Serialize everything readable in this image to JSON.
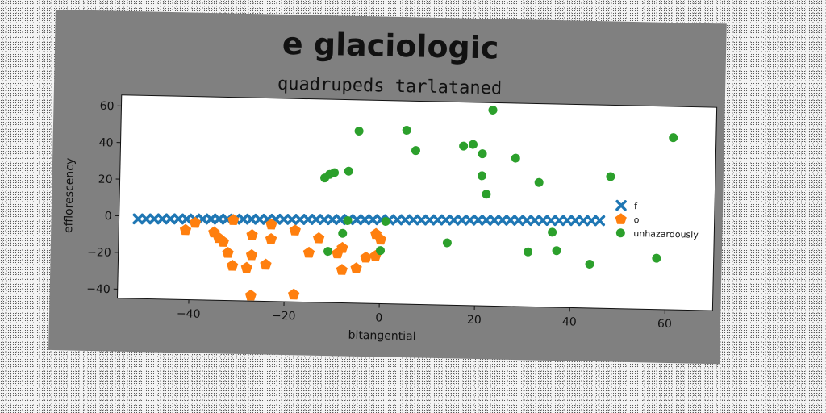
{
  "chart_data": {
    "type": "scatter",
    "title": "e glaciologic",
    "subtitle": "quadrupeds tarlataned",
    "xlabel": "bitangential",
    "ylabel": "efflorescency",
    "xlim": [
      -55,
      70
    ],
    "ylim": [
      -45,
      66
    ],
    "xticks": [
      -40,
      -20,
      0,
      20,
      40,
      60
    ],
    "yticks": [
      -40,
      -20,
      0,
      20,
      40,
      60
    ],
    "xtick_labels": [
      "−40",
      "−20",
      "0",
      "20",
      "40",
      "60"
    ],
    "ytick_labels": [
      "−40",
      "−20",
      "0",
      "20",
      "40",
      "60"
    ],
    "grid": false,
    "legend_position": "right",
    "series": [
      {
        "name": "f",
        "marker": "x",
        "color": "#1f77b4",
        "points": [
          [
            -51,
            -1.5
          ],
          [
            -49.3,
            -1.4
          ],
          [
            -47.6,
            -1.3
          ],
          [
            -45.9,
            -1.2
          ],
          [
            -44.2,
            -1.1
          ],
          [
            -42.5,
            -1.0
          ],
          [
            -40.8,
            -1.0
          ],
          [
            -39.1,
            -0.9
          ],
          [
            -37.4,
            -0.8
          ],
          [
            -35.7,
            -0.7
          ],
          [
            -34.0,
            -0.6
          ],
          [
            -32.3,
            -0.6
          ],
          [
            -30.6,
            -0.5
          ],
          [
            -28.9,
            -0.4
          ],
          [
            -27.2,
            -0.3
          ],
          [
            -25.5,
            -0.3
          ],
          [
            -23.8,
            -0.2
          ],
          [
            -22.1,
            -0.1
          ],
          [
            -20.4,
            0.0
          ],
          [
            -18.7,
            0.0
          ],
          [
            -17.0,
            0.1
          ],
          [
            -15.3,
            0.2
          ],
          [
            -13.6,
            0.3
          ],
          [
            -11.9,
            0.3
          ],
          [
            -10.2,
            0.4
          ],
          [
            -8.5,
            0.5
          ],
          [
            -6.8,
            0.6
          ],
          [
            -5.1,
            0.6
          ],
          [
            -3.4,
            0.7
          ],
          [
            -1.7,
            0.8
          ],
          [
            0.0,
            0.9
          ],
          [
            1.7,
            0.9
          ],
          [
            3.4,
            1.0
          ],
          [
            5.1,
            1.1
          ],
          [
            6.8,
            1.2
          ],
          [
            8.5,
            1.2
          ],
          [
            10.2,
            1.3
          ],
          [
            11.9,
            1.4
          ],
          [
            13.6,
            1.5
          ],
          [
            15.3,
            1.5
          ],
          [
            17.0,
            1.6
          ],
          [
            18.7,
            1.7
          ],
          [
            20.4,
            1.8
          ],
          [
            22.1,
            1.8
          ],
          [
            23.8,
            1.9
          ],
          [
            25.5,
            2.0
          ],
          [
            27.2,
            2.1
          ],
          [
            28.9,
            2.1
          ],
          [
            30.6,
            2.2
          ],
          [
            32.3,
            2.3
          ],
          [
            34.0,
            2.4
          ],
          [
            35.7,
            2.4
          ],
          [
            37.4,
            2.5
          ],
          [
            39.1,
            2.6
          ],
          [
            40.8,
            2.7
          ],
          [
            42.5,
            2.7
          ],
          [
            44.2,
            2.8
          ],
          [
            45.9,
            2.9
          ]
        ]
      },
      {
        "name": "o",
        "marker": "pentagon",
        "color": "#ff7f0e",
        "points": [
          [
            -41,
            -7
          ],
          [
            -39,
            -3
          ],
          [
            -35,
            -8
          ],
          [
            -34,
            -11
          ],
          [
            -33,
            -13
          ],
          [
            -32,
            -19
          ],
          [
            -31,
            -26
          ],
          [
            -31,
            -1
          ],
          [
            -28,
            -27
          ],
          [
            -27,
            -20
          ],
          [
            -27,
            -42
          ],
          [
            -27,
            -9
          ],
          [
            -24,
            -25
          ],
          [
            -23,
            -11
          ],
          [
            -23,
            -3
          ],
          [
            -18,
            -41
          ],
          [
            -18,
            -6
          ],
          [
            -15,
            -18
          ],
          [
            -13,
            -10
          ],
          [
            -9,
            -18
          ],
          [
            -8,
            -27
          ],
          [
            -8,
            -15
          ],
          [
            -5,
            -26
          ],
          [
            -3,
            -20
          ],
          [
            -1,
            -19
          ],
          [
            -1,
            -7
          ],
          [
            0,
            -10
          ]
        ]
      },
      {
        "name": "unhazardously",
        "marker": "circle",
        "color": "#2ca02c",
        "points": [
          [
            -12,
            23
          ],
          [
            -11,
            25
          ],
          [
            -10,
            26
          ],
          [
            -11,
            -17
          ],
          [
            -7,
            27
          ],
          [
            -7,
            0
          ],
          [
            -8,
            -7
          ],
          [
            -5,
            49
          ],
          [
            0,
            -16
          ],
          [
            1,
            0
          ],
          [
            5,
            50
          ],
          [
            7,
            39
          ],
          [
            14,
            -11
          ],
          [
            17,
            42
          ],
          [
            19,
            43
          ],
          [
            21,
            38
          ],
          [
            21,
            26
          ],
          [
            22,
            16
          ],
          [
            23,
            62
          ],
          [
            28,
            36
          ],
          [
            31,
            -15
          ],
          [
            33,
            23
          ],
          [
            36,
            -4
          ],
          [
            37,
            -14
          ],
          [
            44,
            -21
          ],
          [
            48,
            27
          ],
          [
            58,
            -17
          ],
          [
            61,
            49
          ]
        ]
      }
    ]
  }
}
